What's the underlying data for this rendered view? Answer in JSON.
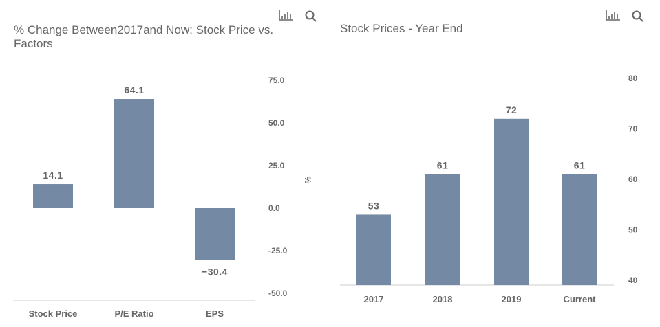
{
  "bar_color": "#7489a3",
  "icons": [
    "bar-chart-icon",
    "search-icon"
  ],
  "chart_data": [
    {
      "type": "bar",
      "title_line1": "% Change Between2017and Now: Stock Price vs.",
      "title_line2": "Factors",
      "categories": [
        "Stock Price",
        "P/E Ratio",
        "EPS"
      ],
      "values": [
        14.1,
        64.1,
        -30.4
      ],
      "data_labels": [
        "14.1",
        "64.1",
        "-30.4"
      ],
      "ylabel": "%",
      "ylim": [
        -50,
        75
      ],
      "yticks": [
        75,
        50,
        25,
        0,
        -25,
        -50
      ],
      "ytick_labels": [
        "75.0",
        "50.0",
        "25.0",
        "0.0",
        "-25.0",
        "-50.0"
      ],
      "axis_side": "right",
      "grid": false
    },
    {
      "type": "bar",
      "title": "Stock Prices - Year End",
      "categories": [
        "2017",
        "2018",
        "2019",
        "Current"
      ],
      "values": [
        53,
        61,
        72,
        61
      ],
      "data_labels": [
        "53",
        "61",
        "72",
        "61"
      ],
      "ylim": [
        40,
        80
      ],
      "yticks": [
        80,
        70,
        60,
        50,
        40
      ],
      "ytick_labels": [
        "80",
        "70",
        "60",
        "50",
        "40"
      ],
      "axis_side": "right",
      "grid": false
    }
  ]
}
